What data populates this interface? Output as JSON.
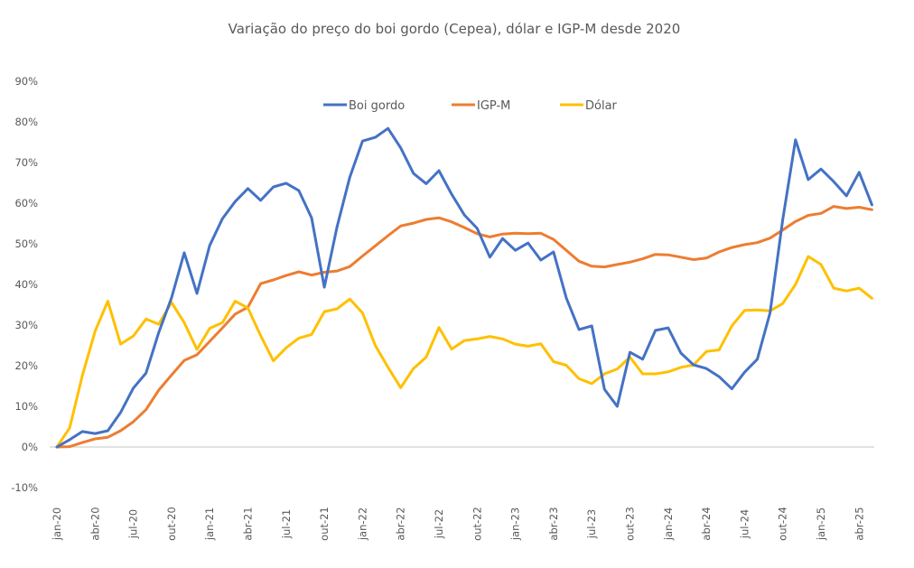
{
  "chart_data": {
    "type": "line",
    "title": "Variação do preço do boi gordo (Cepea), dólar e IGP-M desde 2020",
    "xlabel": "",
    "ylabel": "",
    "ylim": [
      -0.1,
      0.9
    ],
    "yticks": [
      -0.1,
      0.0,
      0.1,
      0.2,
      0.3,
      0.4,
      0.5,
      0.6,
      0.7,
      0.8,
      0.9
    ],
    "ytick_labels": [
      "-10%",
      "0%",
      "10%",
      "20%",
      "30%",
      "40%",
      "50%",
      "60%",
      "70%",
      "80%",
      "90%"
    ],
    "xtick_labels": [
      "jan-20",
      "abr-20",
      "jul-20",
      "out-20",
      "jan-21",
      "abr-21",
      "jul-21",
      "out-21",
      "jan-22",
      "abr-22",
      "jul-22",
      "out-22",
      "jan-23",
      "abr-23",
      "jul-23",
      "out-23",
      "jan-24",
      "abr-24",
      "jul-24",
      "out-24",
      "jan-25",
      "abr-25"
    ],
    "xtick_step_months": 3,
    "x_start": "jan-20",
    "x_end": "jun-25",
    "grid": false,
    "zero_line": true,
    "legend": "top-center",
    "series": [
      {
        "name": "Boi gordo",
        "color": "#4472C4",
        "values": [
          0.0,
          0.018,
          0.038,
          0.033,
          0.04,
          0.085,
          0.145,
          0.182,
          0.282,
          0.367,
          0.478,
          0.378,
          0.496,
          0.562,
          0.604,
          0.636,
          0.607,
          0.64,
          0.649,
          0.631,
          0.564,
          0.393,
          0.542,
          0.664,
          0.753,
          0.762,
          0.784,
          0.736,
          0.673,
          0.648,
          0.68,
          0.622,
          0.571,
          0.538,
          0.467,
          0.513,
          0.484,
          0.502,
          0.46,
          0.48,
          0.367,
          0.289,
          0.298,
          0.142,
          0.1,
          0.233,
          0.216,
          0.287,
          0.293,
          0.231,
          0.202,
          0.193,
          0.173,
          0.143,
          0.184,
          0.216,
          0.33,
          0.56,
          0.756,
          0.658,
          0.684,
          0.653,
          0.618,
          0.676,
          0.596
        ]
      },
      {
        "name": "IGP-M",
        "color": "#ED7D31",
        "values": [
          0.0,
          0.001,
          0.011,
          0.02,
          0.024,
          0.04,
          0.062,
          0.092,
          0.14,
          0.177,
          0.213,
          0.227,
          0.26,
          0.293,
          0.327,
          0.344,
          0.402,
          0.411,
          0.422,
          0.431,
          0.423,
          0.43,
          0.433,
          0.444,
          0.47,
          0.495,
          0.52,
          0.544,
          0.551,
          0.56,
          0.564,
          0.554,
          0.54,
          0.525,
          0.517,
          0.524,
          0.526,
          0.525,
          0.526,
          0.511,
          0.484,
          0.457,
          0.445,
          0.443,
          0.449,
          0.455,
          0.463,
          0.474,
          0.473,
          0.467,
          0.461,
          0.465,
          0.48,
          0.491,
          0.498,
          0.503,
          0.514,
          0.534,
          0.555,
          0.57,
          0.575,
          0.592,
          0.587,
          0.59,
          0.584
        ]
      },
      {
        "name": "Dólar",
        "color": "#FFC000",
        "values": [
          0.0,
          0.047,
          0.176,
          0.285,
          0.359,
          0.253,
          0.273,
          0.315,
          0.302,
          0.356,
          0.306,
          0.24,
          0.292,
          0.306,
          0.359,
          0.342,
          0.274,
          0.212,
          0.244,
          0.268,
          0.277,
          0.333,
          0.34,
          0.364,
          0.33,
          0.25,
          0.196,
          0.146,
          0.193,
          0.221,
          0.294,
          0.241,
          0.262,
          0.266,
          0.272,
          0.266,
          0.253,
          0.248,
          0.254,
          0.21,
          0.201,
          0.168,
          0.156,
          0.18,
          0.192,
          0.221,
          0.18,
          0.18,
          0.185,
          0.196,
          0.202,
          0.235,
          0.239,
          0.298,
          0.336,
          0.337,
          0.335,
          0.353,
          0.4,
          0.469,
          0.449,
          0.391,
          0.384,
          0.391,
          0.366
        ]
      }
    ]
  }
}
